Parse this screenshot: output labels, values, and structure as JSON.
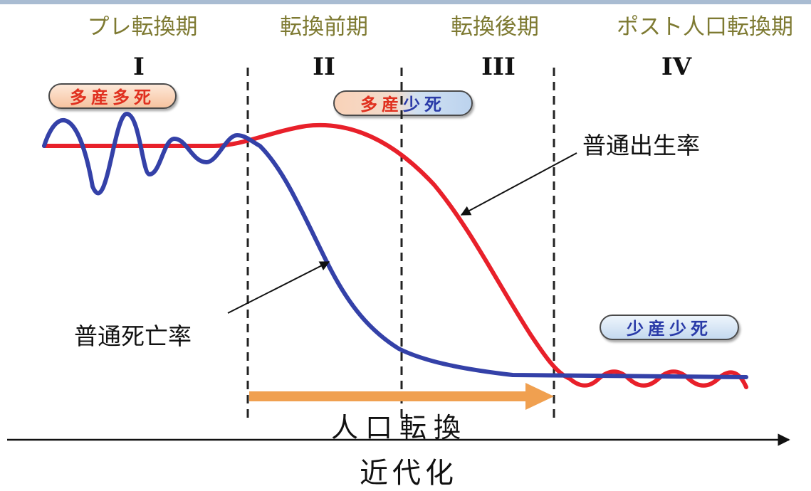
{
  "stages": [
    {
      "name": "プレ転換期",
      "numeral": "I"
    },
    {
      "name": "転換前期",
      "numeral": "II"
    },
    {
      "name": "転換後期",
      "numeral": "III"
    },
    {
      "name": "ポスト人口転換期",
      "numeral": "IV"
    }
  ],
  "badges": {
    "high_high": {
      "first": "多産",
      "second": "多死"
    },
    "high_low": {
      "first": "多産",
      "second": "少死"
    },
    "low_low": {
      "first": "少産",
      "second": "少死"
    }
  },
  "curves": {
    "birth_rate": {
      "label": "普通出生率",
      "color": "#e8202a"
    },
    "death_rate": {
      "label": "普通死亡率",
      "color": "#3441a8"
    }
  },
  "transition_arrow": {
    "label": "人口転換",
    "color": "#f0a050"
  },
  "x_axis": {
    "label": "近代化"
  }
}
